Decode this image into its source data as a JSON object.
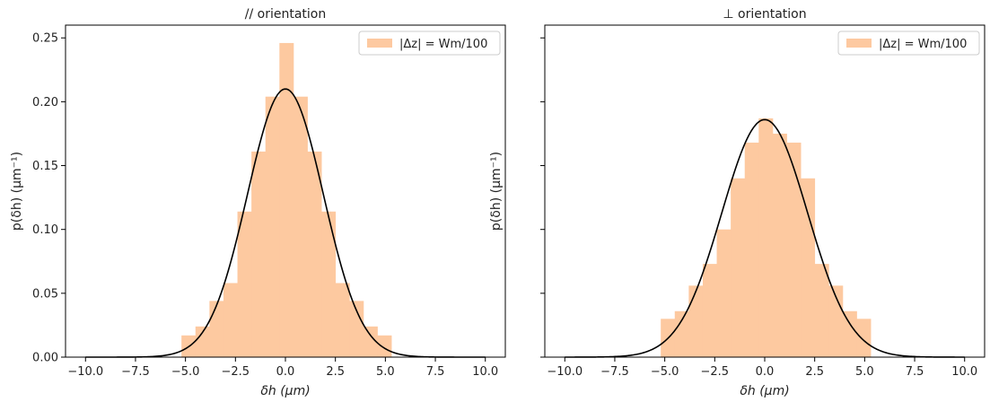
{
  "chart_data": [
    {
      "type": "histogram",
      "title": "// orientation",
      "xlabel": "δh (µm)",
      "ylabel": "p(δh) (µm⁻¹)",
      "xlim": [
        -11,
        11
      ],
      "ylim": [
        0,
        0.26
      ],
      "xticks": [
        -10,
        -7.5,
        -5,
        -2.5,
        0,
        2.5,
        5,
        7.5,
        10
      ],
      "xtick_labels": [
        "−10.0",
        "−7.5",
        "−5.0",
        "−2.5",
        "0.0",
        "2.5",
        "5.0",
        "7.5",
        "10.0"
      ],
      "yticks": [
        0,
        0.05,
        0.1,
        0.15,
        0.2,
        0.25
      ],
      "ytick_labels": [
        "0.00",
        "0.05",
        "0.10",
        "0.15",
        "0.20",
        "0.25"
      ],
      "legend": {
        "label": "|Δz| = Wm/100",
        "position": "top-right"
      },
      "histogram": {
        "color": "#fdc9a0",
        "bin_edges": [
          -5.2,
          -4.5,
          -3.8,
          -3.1,
          -2.4,
          -1.7,
          -1.0,
          -0.3,
          0.4,
          1.1,
          1.8,
          2.5,
          3.2,
          3.9,
          4.6,
          5.3
        ],
        "values": [
          0.017,
          0.024,
          0.044,
          0.058,
          0.114,
          0.161,
          0.204,
          0.246,
          0.204,
          0.161,
          0.114,
          0.058,
          0.044,
          0.024,
          0.017
        ]
      },
      "fit": {
        "type": "gaussian",
        "color": "#000000",
        "mean": 0.0,
        "sigma": 1.9,
        "peak": 0.21
      }
    },
    {
      "type": "histogram",
      "title": "⊥ orientation",
      "xlabel": "δh (µm)",
      "ylabel": "p(δh) (µm⁻¹)",
      "xlim": [
        -11,
        11
      ],
      "ylim": [
        0,
        0.26
      ],
      "xticks": [
        -10,
        -7.5,
        -5,
        -2.5,
        0,
        2.5,
        5,
        7.5,
        10
      ],
      "xtick_labels": [
        "−10.0",
        "−7.5",
        "−5.0",
        "−2.5",
        "0.0",
        "2.5",
        "5.0",
        "7.5",
        "10.0"
      ],
      "yticks": [
        0,
        0.05,
        0.1,
        0.15,
        0.2,
        0.25
      ],
      "legend": {
        "label": "|Δz| = Wm/100",
        "position": "top-right"
      },
      "histogram": {
        "color": "#fdc9a0",
        "bin_edges": [
          -5.2,
          -4.5,
          -3.8,
          -3.1,
          -2.4,
          -1.7,
          -1.0,
          -0.3,
          0.4,
          1.1,
          1.8,
          2.5,
          3.2,
          3.9,
          4.6,
          5.3
        ],
        "values": [
          0.03,
          0.036,
          0.056,
          0.073,
          0.1,
          0.14,
          0.168,
          0.187,
          0.175,
          0.168,
          0.14,
          0.073,
          0.056,
          0.036,
          0.03
        ]
      },
      "fit": {
        "type": "gaussian",
        "color": "#000000",
        "mean": 0.0,
        "sigma": 2.15,
        "peak": 0.186
      }
    }
  ]
}
